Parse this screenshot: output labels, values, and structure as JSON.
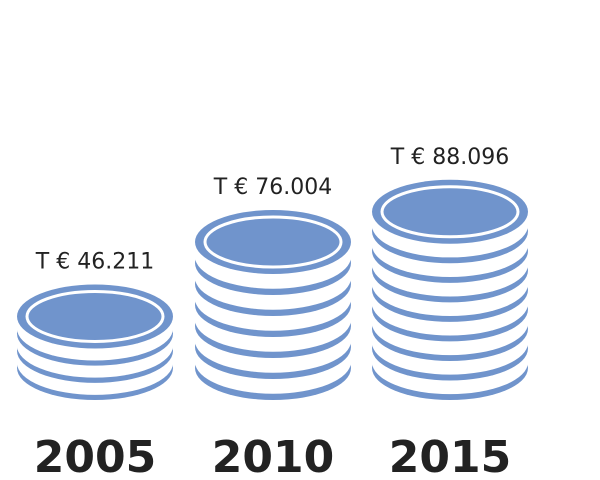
{
  "chart_data": {
    "type": "coin-stack",
    "categories": [
      "2005",
      "2010",
      "2015"
    ],
    "values": [
      46211,
      76004,
      88096
    ],
    "value_labels": [
      "T € 46.211",
      "T € 76.004",
      "T € 88.096"
    ],
    "color": "#7094cc"
  }
}
